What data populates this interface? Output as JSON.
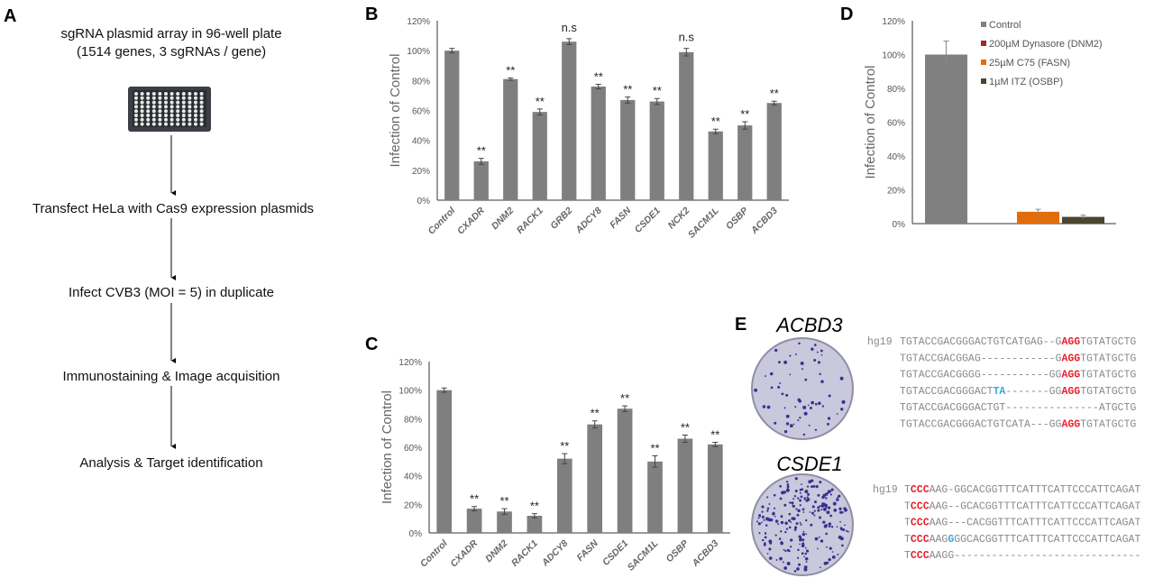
{
  "panel_labels": {
    "a": "A",
    "b": "B",
    "c": "C",
    "d": "D",
    "e": "E"
  },
  "workflow": {
    "steps": [
      "sgRNA plasmid array in 96-well plate",
      "(1514 genes, 3 sgRNAs / gene)",
      "Transfect HeLa with Cas9 expression plasmids",
      "Infect CVB3 (MOI = 5) in duplicate",
      "Immunostaining & Image acquisition",
      "Analysis & Target identification"
    ]
  },
  "colors": {
    "bar": "#7f7f7f",
    "control": "#808080",
    "dynasore": "#a0282d",
    "c75": "#e36c0a",
    "itz": "#4a4431",
    "red": "#e8202a",
    "blue": "#3aa6dc"
  },
  "chart_data": [
    {
      "panel": "B",
      "type": "bar",
      "ylabel": "Infection of Control",
      "ylim": [
        0,
        120
      ],
      "yticks": [
        "0%",
        "20%",
        "40%",
        "60%",
        "80%",
        "100%",
        "120%"
      ],
      "categories": [
        "Control",
        "CXADR",
        "DNM2",
        "RACK1",
        "GRB2",
        "ADCY8",
        "FASN",
        "CSDE1",
        "NCK2",
        "SACM1L",
        "OSBP",
        "ACBD3"
      ],
      "values": [
        100,
        26,
        81,
        59,
        106,
        76,
        67,
        66,
        99,
        46,
        50,
        65
      ],
      "errors": [
        1.5,
        2,
        0.8,
        2,
        2,
        1.5,
        2,
        2,
        2.5,
        1.5,
        2.5,
        1.2
      ],
      "annotations": [
        "",
        "**",
        "**",
        "**",
        "n.s",
        "**",
        "**",
        "**",
        "n.s",
        "**",
        "**",
        "**"
      ]
    },
    {
      "panel": "C",
      "type": "bar",
      "ylabel": "Infection of Control",
      "ylim": [
        0,
        120
      ],
      "yticks": [
        "0%",
        "20%",
        "40%",
        "60%",
        "80%",
        "100%",
        "120%"
      ],
      "categories": [
        "Control",
        "CXADR",
        "DNM2",
        "RACK1",
        "ADCY8",
        "FASN",
        "CSDE1",
        "SACM1L",
        "OSBP",
        "ACBD3"
      ],
      "values": [
        100,
        17,
        15,
        12,
        52,
        76,
        87,
        50,
        66,
        62
      ],
      "errors": [
        1.5,
        1.5,
        2,
        1.5,
        3.5,
        2.5,
        2,
        4,
        2.5,
        1.5
      ],
      "annotations": [
        "",
        "**",
        "**",
        "**",
        "**",
        "**",
        "**",
        "**",
        "**",
        "**"
      ]
    },
    {
      "panel": "D",
      "type": "bar",
      "ylabel": "Infection of Control",
      "ylim": [
        0,
        120
      ],
      "yticks": [
        "0%",
        "20%",
        "40%",
        "60%",
        "80%",
        "100%",
        "120%"
      ],
      "series": [
        {
          "name": "Control",
          "value": 100,
          "error": 8,
          "color": "#808080"
        },
        {
          "name": "200µM Dynasore (DNM2)",
          "value": 0,
          "error": 0,
          "color": "#a0282d"
        },
        {
          "name": "25µM C75 (FASN)",
          "value": 7,
          "error": 1.5,
          "color": "#e36c0a"
        },
        {
          "name": "1µM ITZ (OSBP)",
          "value": 4,
          "error": 1,
          "color": "#4a4431"
        }
      ],
      "legend": "top-right"
    }
  ],
  "panel_e": {
    "blocks": [
      {
        "gene": "ACBD3",
        "ref_label": "hg19",
        "rows": [
          [
            [
              "TGTACCGACGGGACTGTCATGAG--G",
              ""
            ],
            [
              "AGG",
              "red"
            ],
            [
              "TGTATGCTG",
              ""
            ]
          ],
          [
            [
              "TGTACCGACGGAG------------G",
              ""
            ],
            [
              "AGG",
              "red"
            ],
            [
              "TGTATGCTG",
              ""
            ]
          ],
          [
            [
              "TGTACCGACGGGG-----------GG",
              ""
            ],
            [
              "AGG",
              "red"
            ],
            [
              "TGTATGCTG",
              ""
            ]
          ],
          [
            [
              "TGTACCGACGGGACT",
              ""
            ],
            [
              "TA",
              "blue"
            ],
            [
              "-------GG",
              ""
            ],
            [
              "AGG",
              "red"
            ],
            [
              "TGTATGCTG",
              ""
            ]
          ],
          [
            [
              "TGTACCGACGGGACTGT---------------ATGCTG",
              ""
            ]
          ],
          [
            [
              "TGTACCGACGGGACTGTCATA---GG",
              ""
            ],
            [
              "AGG",
              "red"
            ],
            [
              "TGTATGCTG",
              ""
            ]
          ]
        ]
      },
      {
        "gene": "CSDE1",
        "ref_label": "hg19",
        "rows": [
          [
            [
              "T",
              ""
            ],
            [
              "CCC",
              "red"
            ],
            [
              "AAG-GGCACGGTTTCATTTCATTCCCATTCAGAT",
              ""
            ]
          ],
          [
            [
              "T",
              ""
            ],
            [
              "CCC",
              "red"
            ],
            [
              "AAG--GCACGGTTTCATTTCATTCCCATTCAGAT",
              ""
            ]
          ],
          [
            [
              "T",
              ""
            ],
            [
              "CCC",
              "red"
            ],
            [
              "AAG---CACGGTTTCATTTCATTCCCATTCAGAT",
              ""
            ]
          ],
          [
            [
              "T",
              ""
            ],
            [
              "CCC",
              "red"
            ],
            [
              "AAG",
              ""
            ],
            [
              "G",
              "blue"
            ],
            [
              "GGCACGGTTTCATTTCATTCCCATTCAGAT",
              ""
            ]
          ],
          [
            [
              "T",
              ""
            ],
            [
              "CCC",
              "red"
            ],
            [
              "AAGG------------------------------",
              ""
            ]
          ]
        ]
      }
    ]
  }
}
